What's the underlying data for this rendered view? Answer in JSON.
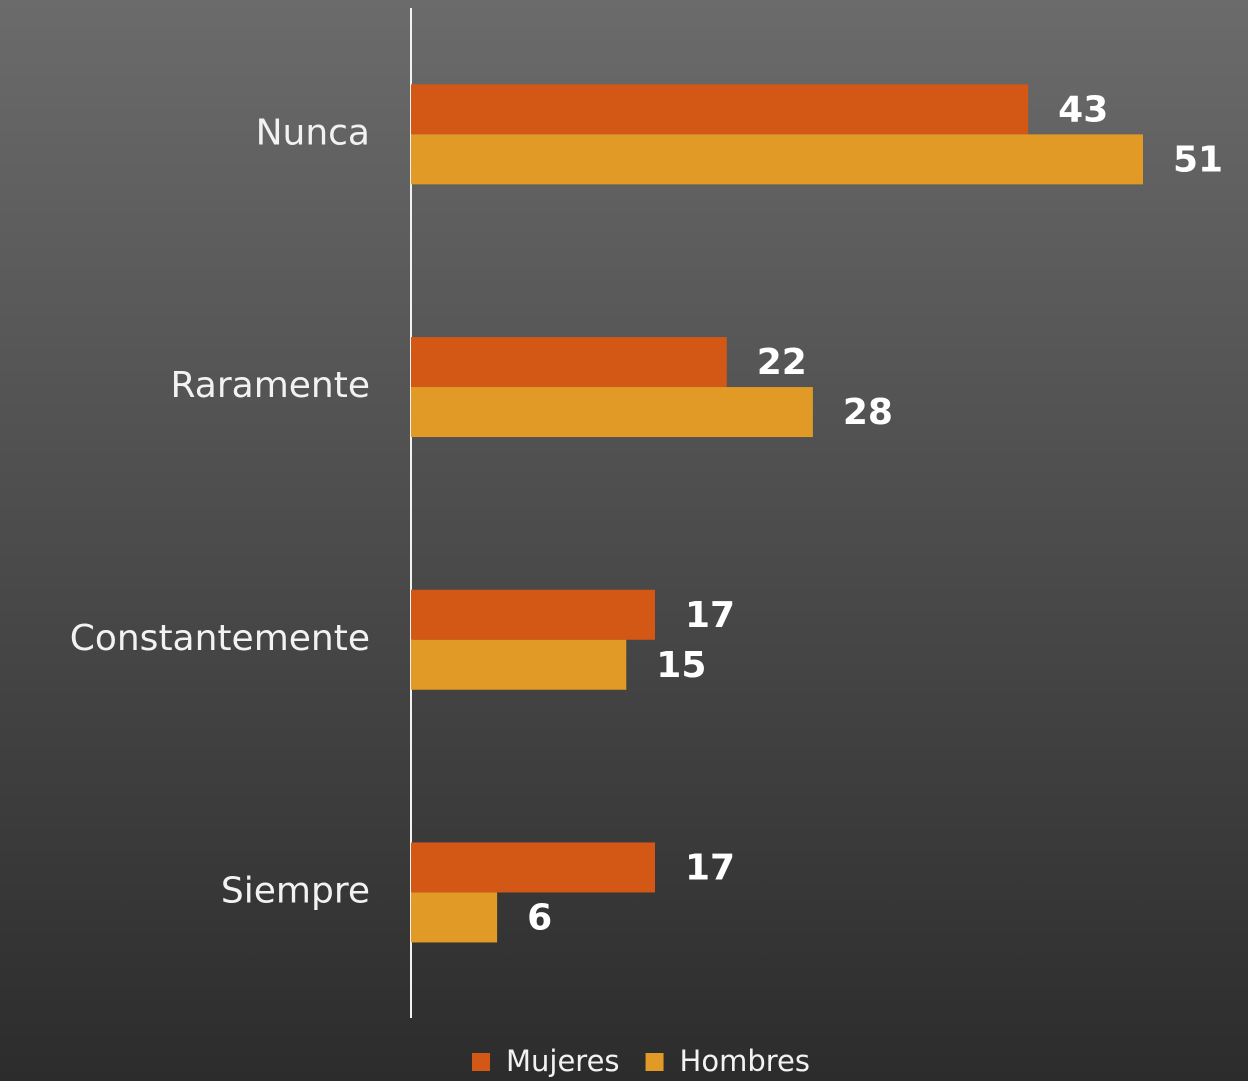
{
  "chart_data": {
    "type": "bar",
    "orientation": "horizontal",
    "categories": [
      "Nunca",
      "Raramente",
      "Constantemente",
      "Siempre"
    ],
    "series": [
      {
        "name": "Mujeres",
        "color": "#d35815",
        "values": [
          43,
          22,
          17,
          17
        ]
      },
      {
        "name": "Hombres",
        "color": "#e09a25",
        "values": [
          51,
          28,
          15,
          6
        ]
      }
    ],
    "legend": "bottom"
  }
}
